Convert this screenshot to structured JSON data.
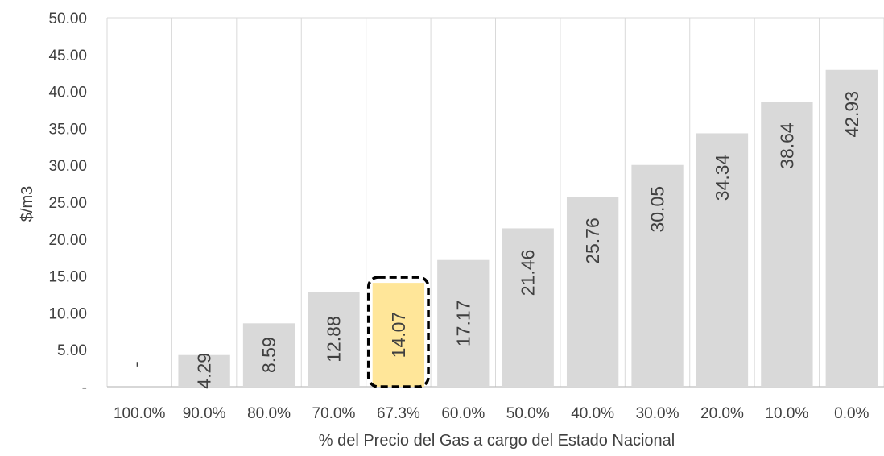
{
  "chart_data": {
    "type": "bar",
    "title": "",
    "xlabel": "% del Precio del Gas a cargo del Estado Nacional",
    "ylabel": "$/m3",
    "ylim": [
      0,
      50
    ],
    "yticks": [
      "-",
      "5.00",
      "10.00",
      "15.00",
      "20.00",
      "25.00",
      "30.00",
      "35.00",
      "40.00",
      "45.00",
      "50.00"
    ],
    "ytick_values": [
      0,
      5,
      10,
      15,
      20,
      25,
      30,
      35,
      40,
      45,
      50
    ],
    "categories": [
      "100.0%",
      "90.0%",
      "80.0%",
      "70.0%",
      "67.3%",
      "60.0%",
      "50.0%",
      "40.0%",
      "30.0%",
      "20.0%",
      "10.0%",
      "0.0%"
    ],
    "values": [
      0,
      4.29,
      8.59,
      12.88,
      14.07,
      17.17,
      21.46,
      25.76,
      30.05,
      34.34,
      38.64,
      42.93
    ],
    "data_labels": [
      "-",
      "4.29",
      "8.59",
      "12.88",
      "14.07",
      "17.17",
      "21.46",
      "25.76",
      "30.05",
      "34.34",
      "38.64",
      "42.93"
    ],
    "highlight_index": 4,
    "grid": "vertical",
    "legend": "none",
    "colors": {
      "bar": "#d9d9d9",
      "highlight_bar": "#ffe699",
      "highlight_border": "#000000",
      "grid": "#d9d9d9",
      "axis": "#bfbfbf",
      "text": "#404040"
    }
  }
}
